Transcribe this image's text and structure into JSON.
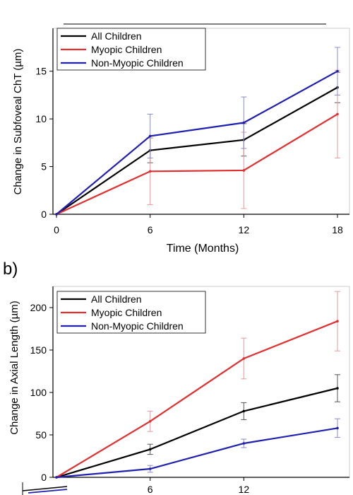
{
  "chart_data": [
    {
      "type": "line",
      "panel_label": "",
      "xlabel": "Time (Months)",
      "ylabel": "Change in Subfoveal ChT (µm)",
      "x": [
        0,
        6,
        12,
        18
      ],
      "xticks": [
        "0",
        "6",
        "12",
        "18"
      ],
      "xlim": [
        0,
        18
      ],
      "ylim": [
        0,
        19.5
      ],
      "yticks": [
        "0",
        "5",
        "10",
        "15"
      ],
      "grid": false,
      "legend_position": "top-left",
      "series": [
        {
          "name": "All Children",
          "color": "#000000",
          "values": [
            0,
            6.7,
            7.8,
            13.3
          ],
          "error": [
            0,
            1.3,
            1.7,
            1.6
          ]
        },
        {
          "name": "Myopic Children",
          "color": "#e03030",
          "values": [
            0,
            4.5,
            4.6,
            10.5
          ],
          "error": [
            0,
            3.5,
            4.0,
            4.6
          ]
        },
        {
          "name": "Non-Myopic Children",
          "color": "#2020b0",
          "values": [
            0,
            8.2,
            9.6,
            15.0
          ],
          "error": [
            0,
            2.3,
            2.7,
            2.5
          ]
        }
      ]
    },
    {
      "type": "line",
      "panel_label": "b)",
      "xlabel": "",
      "ylabel": "Change in Axial Length (µm)",
      "x": [
        0,
        6,
        12,
        18
      ],
      "xticks": [
        "6",
        "12"
      ],
      "xlim": [
        0,
        18
      ],
      "ylim": [
        0,
        225
      ],
      "yticks": [
        "0",
        "50",
        "100",
        "150",
        "200"
      ],
      "grid": false,
      "legend_position": "top-left",
      "series": [
        {
          "name": "All Children",
          "color": "#000000",
          "values": [
            0,
            33,
            78,
            105
          ],
          "error": [
            0,
            6,
            10,
            16
          ]
        },
        {
          "name": "Myopic Children",
          "color": "#e03030",
          "values": [
            0,
            66,
            140,
            184
          ],
          "error": [
            0,
            12,
            24,
            35
          ]
        },
        {
          "name": "Non-Myopic Children",
          "color": "#2020b0",
          "values": [
            0,
            10,
            40,
            58
          ],
          "error": [
            0,
            4,
            5,
            11
          ]
        }
      ]
    }
  ]
}
